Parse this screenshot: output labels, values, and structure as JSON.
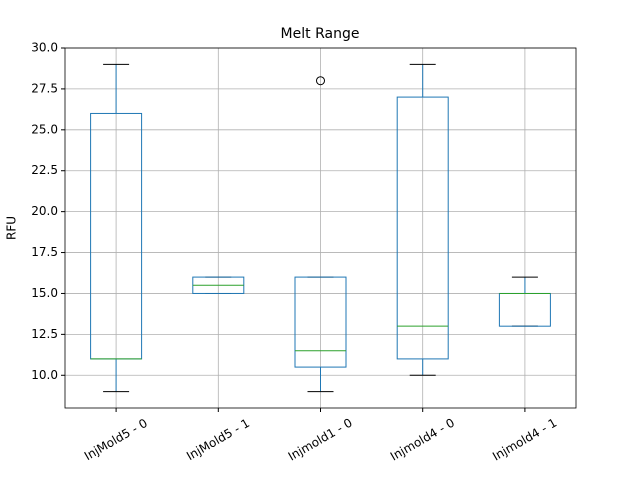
{
  "chart_data": {
    "type": "box",
    "title": "Melt Range",
    "ylabel": "RFU",
    "categories": [
      "InjMold5 - 0",
      "InjMold5 - 1",
      "Injmold1 - 0",
      "Injmold4 - 0",
      "Injmold4 - 1"
    ],
    "whisker_low": [
      9,
      15,
      9,
      10,
      13
    ],
    "q1": [
      11,
      15,
      10.5,
      11,
      13
    ],
    "median": [
      11,
      15.5,
      11.5,
      13,
      15
    ],
    "q3": [
      26,
      16,
      16,
      27,
      15
    ],
    "whisker_high": [
      29,
      16,
      16,
      29,
      16
    ],
    "outliers": [
      [],
      [],
      [
        28
      ],
      [],
      []
    ],
    "box_color": "#1f77b4",
    "median_color": "#2ca02c",
    "whisker_color": "#000000",
    "ylim": [
      8,
      30
    ],
    "yticks": [
      {
        "value": 10,
        "label": "10.0"
      },
      {
        "value": 12.5,
        "label": "12.5"
      },
      {
        "value": 15,
        "label": "15.0"
      },
      {
        "value": 17.5,
        "label": "17.5"
      },
      {
        "value": 20,
        "label": "20.0"
      },
      {
        "value": 22.5,
        "label": "22.5"
      },
      {
        "value": 25,
        "label": "25.0"
      },
      {
        "value": 27.5,
        "label": "27.5"
      },
      {
        "value": 30,
        "label": "30.0"
      }
    ],
    "grid": true
  }
}
